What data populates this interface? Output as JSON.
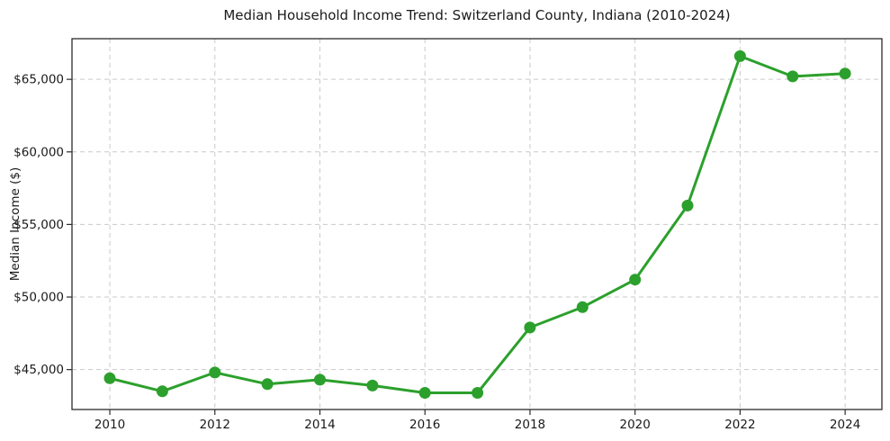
{
  "chart_data": {
    "type": "line",
    "title": "Median Household Income Trend: Switzerland County, Indiana (2010-2024)",
    "xlabel": "",
    "ylabel": "Median Income ($)",
    "x": [
      2010,
      2011,
      2012,
      2013,
      2014,
      2015,
      2016,
      2017,
      2018,
      2019,
      2020,
      2021,
      2022,
      2023,
      2024
    ],
    "values": [
      44400,
      43500,
      44800,
      44000,
      44300,
      43900,
      43400,
      43400,
      47900,
      49300,
      51200,
      56300,
      66600,
      65200,
      65400
    ],
    "x_ticks": [
      2010,
      2012,
      2014,
      2016,
      2018,
      2020,
      2022,
      2024
    ],
    "x_tick_labels": [
      "2010",
      "2012",
      "2014",
      "2016",
      "2018",
      "2020",
      "2022",
      "2024"
    ],
    "y_ticks": [
      45000,
      50000,
      55000,
      60000,
      65000
    ],
    "y_tick_labels": [
      "$45,000",
      "$50,000",
      "$55,000",
      "$60,000",
      "$65,000"
    ],
    "xlim": [
      2009.28,
      2024.7
    ],
    "ylim": [
      42250,
      67800
    ],
    "grid": true,
    "grid_style": "dashed",
    "legend": "none",
    "line_color": "#2ca02c",
    "marker": "circle",
    "grid_color": "#c9c9c9",
    "axis_color": "#2b2b2b",
    "text_color": "#1a1a1a",
    "background": "#ffffff"
  }
}
